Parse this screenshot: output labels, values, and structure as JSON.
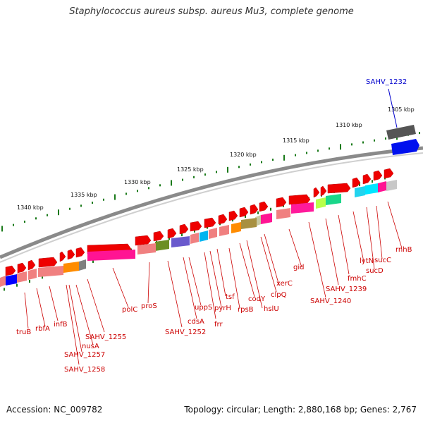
{
  "title": "Staphylococcus aureus subsp. aureus Mu3, complete genome",
  "accession": "Accession: NC_009782",
  "summary": "Topology: circular; Length: 2,880,168 bp; Genes: 2,767",
  "kbp_ticks": [
    "1305 kbp",
    "1310 kbp",
    "1315 kbp",
    "1320 kbp",
    "1325 kbp",
    "1330 kbp",
    "1335 kbp",
    "1340 kbp"
  ],
  "top_gene": "SAHV_1232",
  "gene_labels": [
    "rnhB",
    "sucC",
    "sucD",
    "lytN",
    "fmhC",
    "SAHV_1239",
    "SAHV_1240",
    "gid",
    "xerC",
    "clpQ",
    "hslU",
    "codY",
    "rpsB",
    "tsf",
    "pyrH",
    "frr",
    "uppS",
    "cdsA",
    "SAHV_1252",
    "proS",
    "polC",
    "SAHV_1255",
    "nusA",
    "SAHV_1257",
    "SAHV_1258",
    "infB",
    "rbfA",
    "truB"
  ],
  "colors": {
    "gene_label": "#cc0000",
    "highlight": "#0000cc",
    "tick": "#1a7a1a",
    "backbone": "#808080"
  }
}
